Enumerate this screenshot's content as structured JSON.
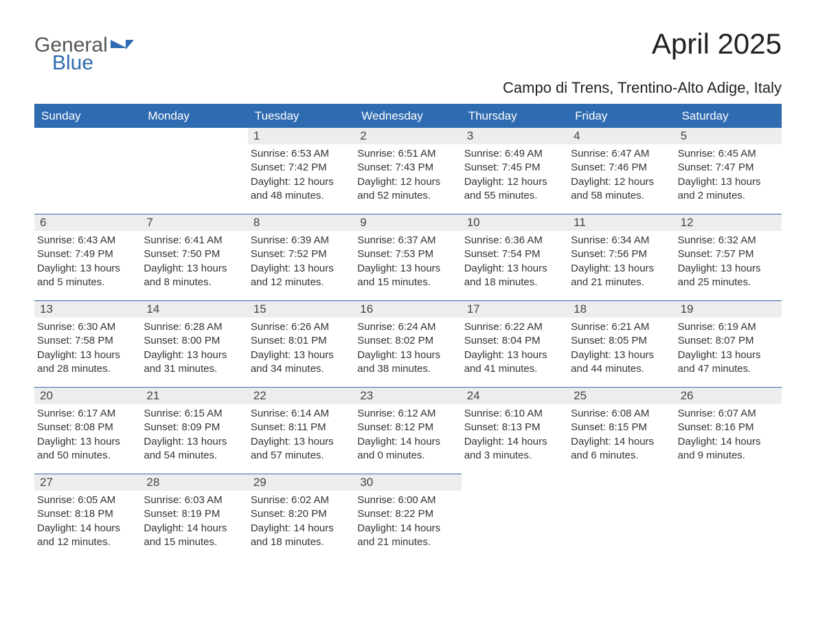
{
  "logo": {
    "word1": "General",
    "word2": "Blue"
  },
  "title": "April 2025",
  "location": "Campo di Trens, Trentino-Alto Adige, Italy",
  "colors": {
    "header_bg": "#2f6bb0",
    "header_text": "#ffffff",
    "daynum_bg": "#ededed",
    "text": "#333333",
    "logo_gray": "#555555",
    "logo_blue": "#2f6bb0"
  },
  "daysOfWeek": [
    "Sunday",
    "Monday",
    "Tuesday",
    "Wednesday",
    "Thursday",
    "Friday",
    "Saturday"
  ],
  "leadingEmpty": 2,
  "days": [
    {
      "n": 1,
      "sunrise": "6:53 AM",
      "sunset": "7:42 PM",
      "daylight": "12 hours and 48 minutes."
    },
    {
      "n": 2,
      "sunrise": "6:51 AM",
      "sunset": "7:43 PM",
      "daylight": "12 hours and 52 minutes."
    },
    {
      "n": 3,
      "sunrise": "6:49 AM",
      "sunset": "7:45 PM",
      "daylight": "12 hours and 55 minutes."
    },
    {
      "n": 4,
      "sunrise": "6:47 AM",
      "sunset": "7:46 PM",
      "daylight": "12 hours and 58 minutes."
    },
    {
      "n": 5,
      "sunrise": "6:45 AM",
      "sunset": "7:47 PM",
      "daylight": "13 hours and 2 minutes."
    },
    {
      "n": 6,
      "sunrise": "6:43 AM",
      "sunset": "7:49 PM",
      "daylight": "13 hours and 5 minutes."
    },
    {
      "n": 7,
      "sunrise": "6:41 AM",
      "sunset": "7:50 PM",
      "daylight": "13 hours and 8 minutes."
    },
    {
      "n": 8,
      "sunrise": "6:39 AM",
      "sunset": "7:52 PM",
      "daylight": "13 hours and 12 minutes."
    },
    {
      "n": 9,
      "sunrise": "6:37 AM",
      "sunset": "7:53 PM",
      "daylight": "13 hours and 15 minutes."
    },
    {
      "n": 10,
      "sunrise": "6:36 AM",
      "sunset": "7:54 PM",
      "daylight": "13 hours and 18 minutes."
    },
    {
      "n": 11,
      "sunrise": "6:34 AM",
      "sunset": "7:56 PM",
      "daylight": "13 hours and 21 minutes."
    },
    {
      "n": 12,
      "sunrise": "6:32 AM",
      "sunset": "7:57 PM",
      "daylight": "13 hours and 25 minutes."
    },
    {
      "n": 13,
      "sunrise": "6:30 AM",
      "sunset": "7:58 PM",
      "daylight": "13 hours and 28 minutes."
    },
    {
      "n": 14,
      "sunrise": "6:28 AM",
      "sunset": "8:00 PM",
      "daylight": "13 hours and 31 minutes."
    },
    {
      "n": 15,
      "sunrise": "6:26 AM",
      "sunset": "8:01 PM",
      "daylight": "13 hours and 34 minutes."
    },
    {
      "n": 16,
      "sunrise": "6:24 AM",
      "sunset": "8:02 PM",
      "daylight": "13 hours and 38 minutes."
    },
    {
      "n": 17,
      "sunrise": "6:22 AM",
      "sunset": "8:04 PM",
      "daylight": "13 hours and 41 minutes."
    },
    {
      "n": 18,
      "sunrise": "6:21 AM",
      "sunset": "8:05 PM",
      "daylight": "13 hours and 44 minutes."
    },
    {
      "n": 19,
      "sunrise": "6:19 AM",
      "sunset": "8:07 PM",
      "daylight": "13 hours and 47 minutes."
    },
    {
      "n": 20,
      "sunrise": "6:17 AM",
      "sunset": "8:08 PM",
      "daylight": "13 hours and 50 minutes."
    },
    {
      "n": 21,
      "sunrise": "6:15 AM",
      "sunset": "8:09 PM",
      "daylight": "13 hours and 54 minutes."
    },
    {
      "n": 22,
      "sunrise": "6:14 AM",
      "sunset": "8:11 PM",
      "daylight": "13 hours and 57 minutes."
    },
    {
      "n": 23,
      "sunrise": "6:12 AM",
      "sunset": "8:12 PM",
      "daylight": "14 hours and 0 minutes."
    },
    {
      "n": 24,
      "sunrise": "6:10 AM",
      "sunset": "8:13 PM",
      "daylight": "14 hours and 3 minutes."
    },
    {
      "n": 25,
      "sunrise": "6:08 AM",
      "sunset": "8:15 PM",
      "daylight": "14 hours and 6 minutes."
    },
    {
      "n": 26,
      "sunrise": "6:07 AM",
      "sunset": "8:16 PM",
      "daylight": "14 hours and 9 minutes."
    },
    {
      "n": 27,
      "sunrise": "6:05 AM",
      "sunset": "8:18 PM",
      "daylight": "14 hours and 12 minutes."
    },
    {
      "n": 28,
      "sunrise": "6:03 AM",
      "sunset": "8:19 PM",
      "daylight": "14 hours and 15 minutes."
    },
    {
      "n": 29,
      "sunrise": "6:02 AM",
      "sunset": "8:20 PM",
      "daylight": "14 hours and 18 minutes."
    },
    {
      "n": 30,
      "sunrise": "6:00 AM",
      "sunset": "8:22 PM",
      "daylight": "14 hours and 21 minutes."
    }
  ],
  "labels": {
    "sunrise": "Sunrise:",
    "sunset": "Sunset:",
    "daylight": "Daylight:"
  }
}
